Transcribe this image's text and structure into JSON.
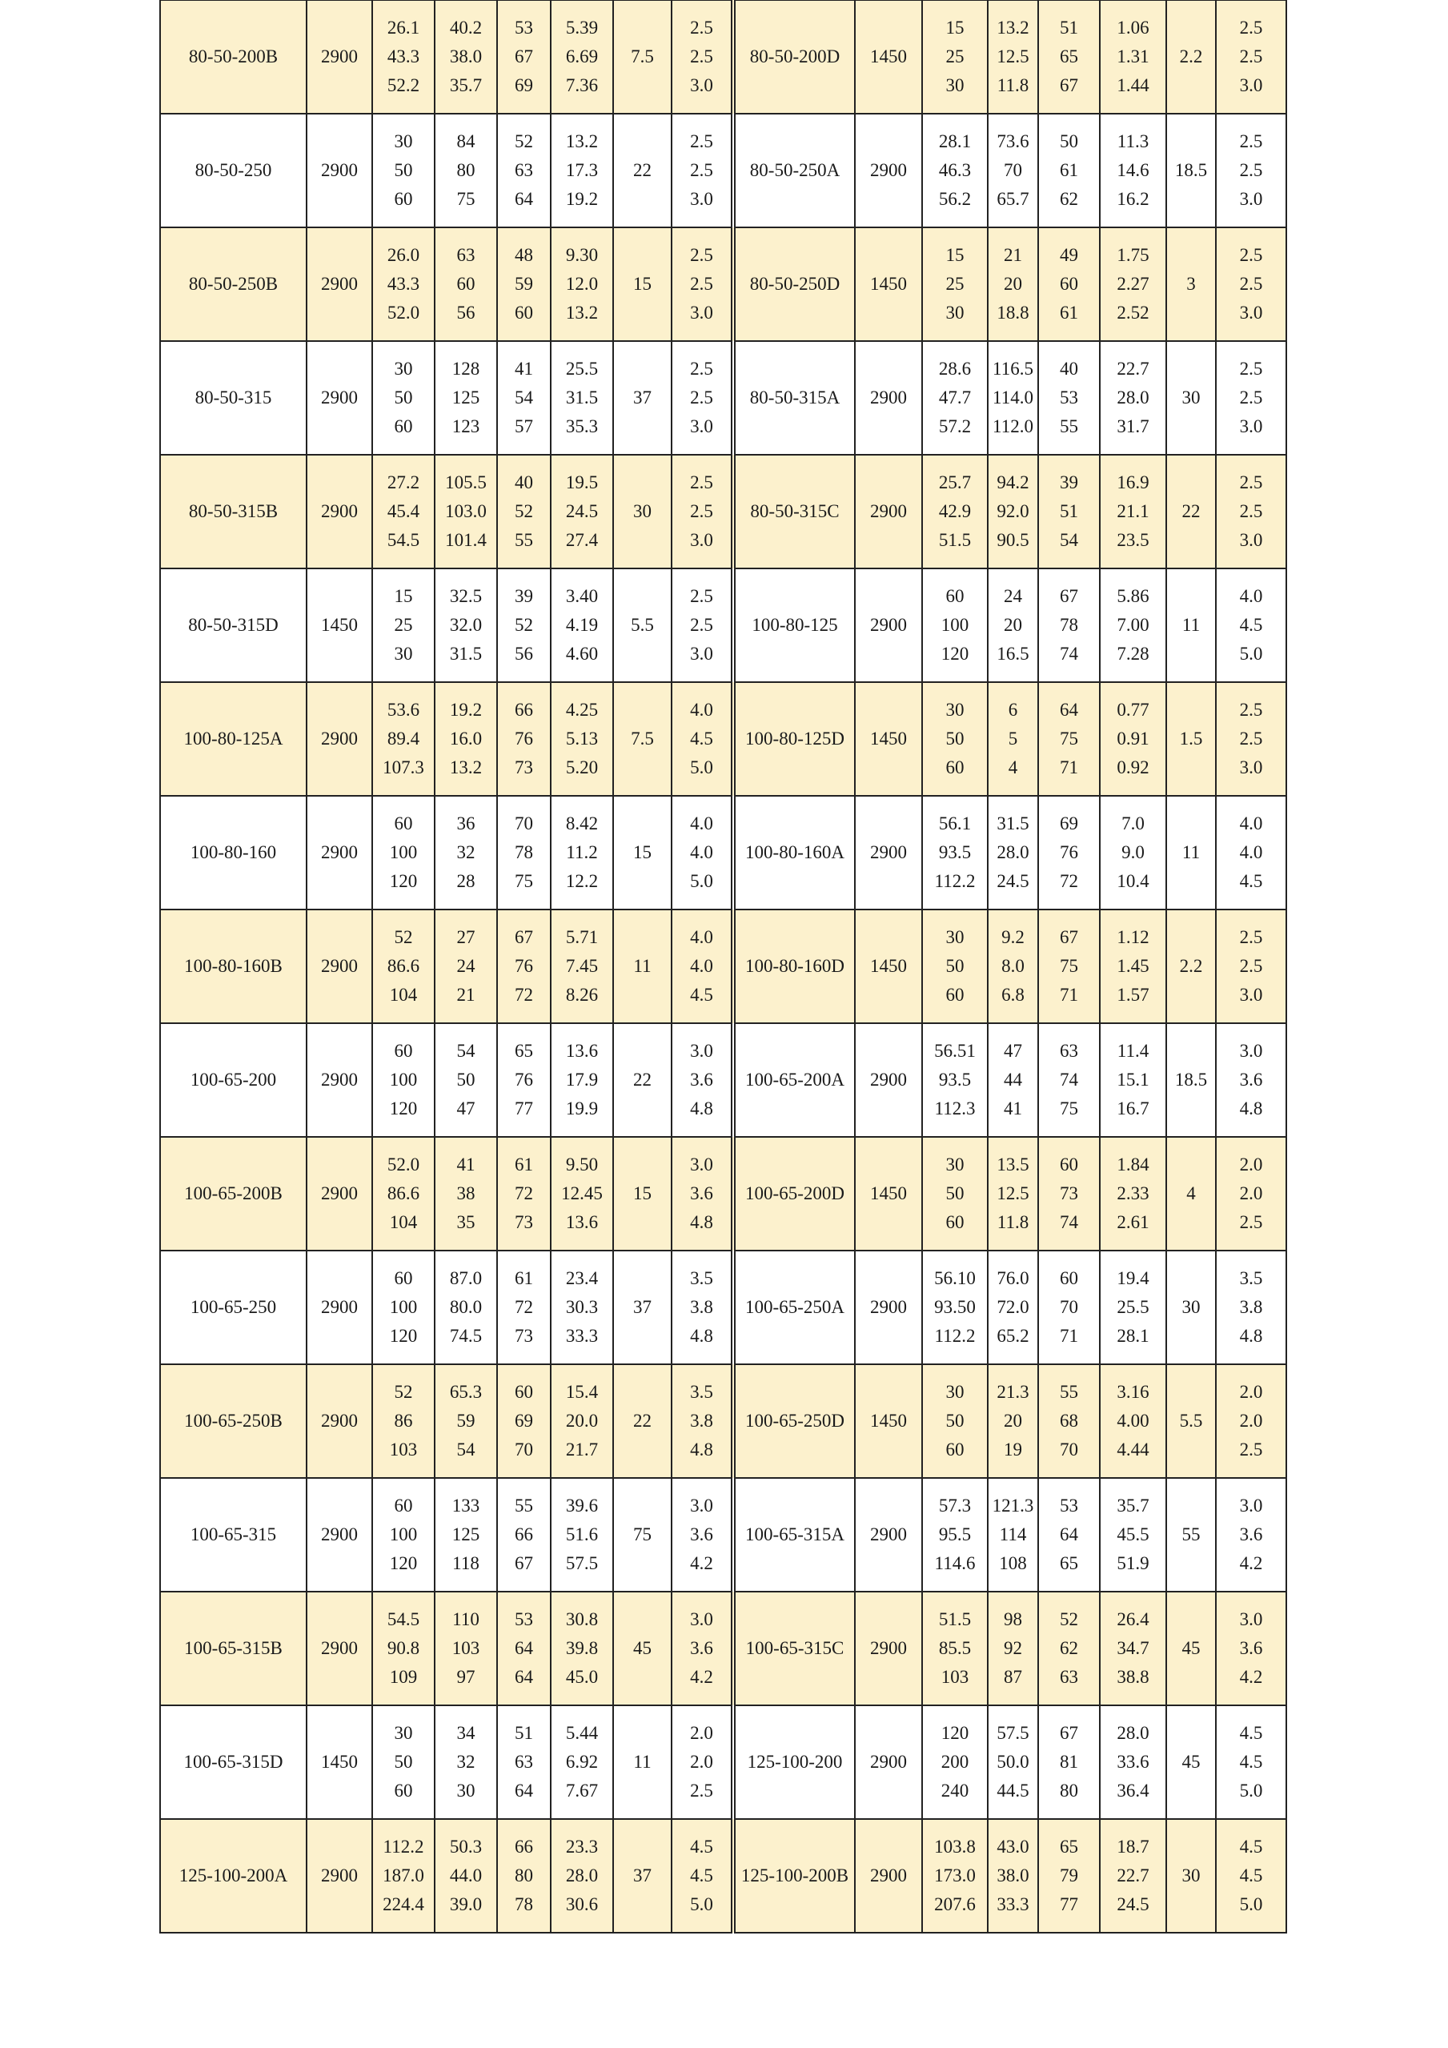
{
  "colors": {
    "highlight_row": "#fcf1cd",
    "border": "#222222"
  },
  "rows": [
    {
      "left": {
        "model": "80-50-200B",
        "speed": "2900",
        "flow": [
          "26.1",
          "43.3",
          "52.2"
        ],
        "head": [
          "40.2",
          "38.0",
          "35.7"
        ],
        "eff": [
          "53",
          "67",
          "69"
        ],
        "shaft": [
          "5.39",
          "6.69",
          "7.36"
        ],
        "motor": "7.5",
        "npsh": [
          "2.5",
          "2.5",
          "3.0"
        ]
      },
      "right": {
        "model": "80-50-200D",
        "speed": "1450",
        "flow": [
          "15",
          "25",
          "30"
        ],
        "head": [
          "13.2",
          "12.5",
          "11.8"
        ],
        "eff": [
          "51",
          "65",
          "67"
        ],
        "shaft": [
          "1.06",
          "1.31",
          "1.44"
        ],
        "motor": "2.2",
        "npsh": [
          "2.5",
          "2.5",
          "3.0"
        ]
      }
    },
    {
      "left": {
        "model": "80-50-250",
        "speed": "2900",
        "flow": [
          "30",
          "50",
          "60"
        ],
        "head": [
          "84",
          "80",
          "75"
        ],
        "eff": [
          "52",
          "63",
          "64"
        ],
        "shaft": [
          "13.2",
          "17.3",
          "19.2"
        ],
        "motor": "22",
        "npsh": [
          "2.5",
          "2.5",
          "3.0"
        ]
      },
      "right": {
        "model": "80-50-250A",
        "speed": "2900",
        "flow": [
          "28.1",
          "46.3",
          "56.2"
        ],
        "head": [
          "73.6",
          "70",
          "65.7"
        ],
        "eff": [
          "50",
          "61",
          "62"
        ],
        "shaft": [
          "11.3",
          "14.6",
          "16.2"
        ],
        "motor": "18.5",
        "npsh": [
          "2.5",
          "2.5",
          "3.0"
        ]
      }
    },
    {
      "left": {
        "model": "80-50-250B",
        "speed": "2900",
        "flow": [
          "26.0",
          "43.3",
          "52.0"
        ],
        "head": [
          "63",
          "60",
          "56"
        ],
        "eff": [
          "48",
          "59",
          "60"
        ],
        "shaft": [
          "9.30",
          "12.0",
          "13.2"
        ],
        "motor": "15",
        "npsh": [
          "2.5",
          "2.5",
          "3.0"
        ]
      },
      "right": {
        "model": "80-50-250D",
        "speed": "1450",
        "flow": [
          "15",
          "25",
          "30"
        ],
        "head": [
          "21",
          "20",
          "18.8"
        ],
        "eff": [
          "49",
          "60",
          "61"
        ],
        "shaft": [
          "1.75",
          "2.27",
          "2.52"
        ],
        "motor": "3",
        "npsh": [
          "2.5",
          "2.5",
          "3.0"
        ]
      }
    },
    {
      "left": {
        "model": "80-50-315",
        "speed": "2900",
        "flow": [
          "30",
          "50",
          "60"
        ],
        "head": [
          "128",
          "125",
          "123"
        ],
        "eff": [
          "41",
          "54",
          "57"
        ],
        "shaft": [
          "25.5",
          "31.5",
          "35.3"
        ],
        "motor": "37",
        "npsh": [
          "2.5",
          "2.5",
          "3.0"
        ]
      },
      "right": {
        "model": "80-50-315A",
        "speed": "2900",
        "flow": [
          "28.6",
          "47.7",
          "57.2"
        ],
        "head": [
          "116.5",
          "114.0",
          "112.0"
        ],
        "eff": [
          "40",
          "53",
          "55"
        ],
        "shaft": [
          "22.7",
          "28.0",
          "31.7"
        ],
        "motor": "30",
        "npsh": [
          "2.5",
          "2.5",
          "3.0"
        ]
      }
    },
    {
      "left": {
        "model": "80-50-315B",
        "speed": "2900",
        "flow": [
          "27.2",
          "45.4",
          "54.5"
        ],
        "head": [
          "105.5",
          "103.0",
          "101.4"
        ],
        "eff": [
          "40",
          "52",
          "55"
        ],
        "shaft": [
          "19.5",
          "24.5",
          "27.4"
        ],
        "motor": "30",
        "npsh": [
          "2.5",
          "2.5",
          "3.0"
        ]
      },
      "right": {
        "model": "80-50-315C",
        "speed": "2900",
        "flow": [
          "25.7",
          "42.9",
          "51.5"
        ],
        "head": [
          "94.2",
          "92.0",
          "90.5"
        ],
        "eff": [
          "39",
          "51",
          "54"
        ],
        "shaft": [
          "16.9",
          "21.1",
          "23.5"
        ],
        "motor": "22",
        "npsh": [
          "2.5",
          "2.5",
          "3.0"
        ]
      }
    },
    {
      "left": {
        "model": "80-50-315D",
        "speed": "1450",
        "flow": [
          "15",
          "25",
          "30"
        ],
        "head": [
          "32.5",
          "32.0",
          "31.5"
        ],
        "eff": [
          "39",
          "52",
          "56"
        ],
        "shaft": [
          "3.40",
          "4.19",
          "4.60"
        ],
        "motor": "5.5",
        "npsh": [
          "2.5",
          "2.5",
          "3.0"
        ]
      },
      "right": {
        "model": "100-80-125",
        "speed": "2900",
        "flow": [
          "60",
          "100",
          "120"
        ],
        "head": [
          "24",
          "20",
          "16.5"
        ],
        "eff": [
          "67",
          "78",
          "74"
        ],
        "shaft": [
          "5.86",
          "7.00",
          "7.28"
        ],
        "motor": "11",
        "npsh": [
          "4.0",
          "4.5",
          "5.0"
        ]
      }
    },
    {
      "left": {
        "model": "100-80-125A",
        "speed": "2900",
        "flow": [
          "53.6",
          "89.4",
          "107.3"
        ],
        "head": [
          "19.2",
          "16.0",
          "13.2"
        ],
        "eff": [
          "66",
          "76",
          "73"
        ],
        "shaft": [
          "4.25",
          "5.13",
          "5.20"
        ],
        "motor": "7.5",
        "npsh": [
          "4.0",
          "4.5",
          "5.0"
        ]
      },
      "right": {
        "model": "100-80-125D",
        "speed": "1450",
        "flow": [
          "30",
          "50",
          "60"
        ],
        "head": [
          "6",
          "5",
          "4"
        ],
        "eff": [
          "64",
          "75",
          "71"
        ],
        "shaft": [
          "0.77",
          "0.91",
          "0.92"
        ],
        "motor": "1.5",
        "npsh": [
          "2.5",
          "2.5",
          "3.0"
        ]
      }
    },
    {
      "left": {
        "model": "100-80-160",
        "speed": "2900",
        "flow": [
          "60",
          "100",
          "120"
        ],
        "head": [
          "36",
          "32",
          "28"
        ],
        "eff": [
          "70",
          "78",
          "75"
        ],
        "shaft": [
          "8.42",
          "11.2",
          "12.2"
        ],
        "motor": "15",
        "npsh": [
          "4.0",
          "4.0",
          "5.0"
        ]
      },
      "right": {
        "model": "100-80-160A",
        "speed": "2900",
        "flow": [
          "56.1",
          "93.5",
          "112.2"
        ],
        "head": [
          "31.5",
          "28.0",
          "24.5"
        ],
        "eff": [
          "69",
          "76",
          "72"
        ],
        "shaft": [
          "7.0",
          "9.0",
          "10.4"
        ],
        "motor": "11",
        "npsh": [
          "4.0",
          "4.0",
          "4.5"
        ]
      }
    },
    {
      "left": {
        "model": "100-80-160B",
        "speed": "2900",
        "flow": [
          "52",
          "86.6",
          "104"
        ],
        "head": [
          "27",
          "24",
          "21"
        ],
        "eff": [
          "67",
          "76",
          "72"
        ],
        "shaft": [
          "5.71",
          "7.45",
          "8.26"
        ],
        "motor": "11",
        "npsh": [
          "4.0",
          "4.0",
          "4.5"
        ]
      },
      "right": {
        "model": "100-80-160D",
        "speed": "1450",
        "flow": [
          "30",
          "50",
          "60"
        ],
        "head": [
          "9.2",
          "8.0",
          "6.8"
        ],
        "eff": [
          "67",
          "75",
          "71"
        ],
        "shaft": [
          "1.12",
          "1.45",
          "1.57"
        ],
        "motor": "2.2",
        "npsh": [
          "2.5",
          "2.5",
          "3.0"
        ]
      }
    },
    {
      "left": {
        "model": "100-65-200",
        "speed": "2900",
        "flow": [
          "60",
          "100",
          "120"
        ],
        "head": [
          "54",
          "50",
          "47"
        ],
        "eff": [
          "65",
          "76",
          "77"
        ],
        "shaft": [
          "13.6",
          "17.9",
          "19.9"
        ],
        "motor": "22",
        "npsh": [
          "3.0",
          "3.6",
          "4.8"
        ]
      },
      "right": {
        "model": "100-65-200A",
        "speed": "2900",
        "flow": [
          "56.51",
          "93.5",
          "112.3"
        ],
        "head": [
          "47",
          "44",
          "41"
        ],
        "eff": [
          "63",
          "74",
          "75"
        ],
        "shaft": [
          "11.4",
          "15.1",
          "16.7"
        ],
        "motor": "18.5",
        "npsh": [
          "3.0",
          "3.6",
          "4.8"
        ]
      }
    },
    {
      "left": {
        "model": "100-65-200B",
        "speed": "2900",
        "flow": [
          "52.0",
          "86.6",
          "104"
        ],
        "head": [
          "41",
          "38",
          "35"
        ],
        "eff": [
          "61",
          "72",
          "73"
        ],
        "shaft": [
          "9.50",
          "12.45",
          "13.6"
        ],
        "motor": "15",
        "npsh": [
          "3.0",
          "3.6",
          "4.8"
        ]
      },
      "right": {
        "model": "100-65-200D",
        "speed": "1450",
        "flow": [
          "30",
          "50",
          "60"
        ],
        "head": [
          "13.5",
          "12.5",
          "11.8"
        ],
        "eff": [
          "60",
          "73",
          "74"
        ],
        "shaft": [
          "1.84",
          "2.33",
          "2.61"
        ],
        "motor": "4",
        "npsh": [
          "2.0",
          "2.0",
          "2.5"
        ]
      }
    },
    {
      "left": {
        "model": "100-65-250",
        "speed": "2900",
        "flow": [
          "60",
          "100",
          "120"
        ],
        "head": [
          "87.0",
          "80.0",
          "74.5"
        ],
        "eff": [
          "61",
          "72",
          "73"
        ],
        "shaft": [
          "23.4",
          "30.3",
          "33.3"
        ],
        "motor": "37",
        "npsh": [
          "3.5",
          "3.8",
          "4.8"
        ]
      },
      "right": {
        "model": "100-65-250A",
        "speed": "2900",
        "flow": [
          "56.10",
          "93.50",
          "112.2"
        ],
        "head": [
          "76.0",
          "72.0",
          "65.2"
        ],
        "eff": [
          "60",
          "70",
          "71"
        ],
        "shaft": [
          "19.4",
          "25.5",
          "28.1"
        ],
        "motor": "30",
        "npsh": [
          "3.5",
          "3.8",
          "4.8"
        ]
      }
    },
    {
      "left": {
        "model": "100-65-250B",
        "speed": "2900",
        "flow": [
          "52",
          "86",
          "103"
        ],
        "head": [
          "65.3",
          "59",
          "54"
        ],
        "eff": [
          "60",
          "69",
          "70"
        ],
        "shaft": [
          "15.4",
          "20.0",
          "21.7"
        ],
        "motor": "22",
        "npsh": [
          "3.5",
          "3.8",
          "4.8"
        ]
      },
      "right": {
        "model": "100-65-250D",
        "speed": "1450",
        "flow": [
          "30",
          "50",
          "60"
        ],
        "head": [
          "21.3",
          "20",
          "19"
        ],
        "eff": [
          "55",
          "68",
          "70"
        ],
        "shaft": [
          "3.16",
          "4.00",
          "4.44"
        ],
        "motor": "5.5",
        "npsh": [
          "2.0",
          "2.0",
          "2.5"
        ]
      }
    },
    {
      "left": {
        "model": "100-65-315",
        "speed": "2900",
        "flow": [
          "60",
          "100",
          "120"
        ],
        "head": [
          "133",
          "125",
          "118"
        ],
        "eff": [
          "55",
          "66",
          "67"
        ],
        "shaft": [
          "39.6",
          "51.6",
          "57.5"
        ],
        "motor": "75",
        "npsh": [
          "3.0",
          "3.6",
          "4.2"
        ]
      },
      "right": {
        "model": "100-65-315A",
        "speed": "2900",
        "flow": [
          "57.3",
          "95.5",
          "114.6"
        ],
        "head": [
          "121.3",
          "114",
          "108"
        ],
        "eff": [
          "53",
          "64",
          "65"
        ],
        "shaft": [
          "35.7",
          "45.5",
          "51.9"
        ],
        "motor": "55",
        "npsh": [
          "3.0",
          "3.6",
          "4.2"
        ]
      }
    },
    {
      "left": {
        "model": "100-65-315B",
        "speed": "2900",
        "flow": [
          "54.5",
          "90.8",
          "109"
        ],
        "head": [
          "110",
          "103",
          "97"
        ],
        "eff": [
          "53",
          "64",
          "64"
        ],
        "shaft": [
          "30.8",
          "39.8",
          "45.0"
        ],
        "motor": "45",
        "npsh": [
          "3.0",
          "3.6",
          "4.2"
        ]
      },
      "right": {
        "model": "100-65-315C",
        "speed": "2900",
        "flow": [
          "51.5",
          "85.5",
          "103"
        ],
        "head": [
          "98",
          "92",
          "87"
        ],
        "eff": [
          "52",
          "62",
          "63"
        ],
        "shaft": [
          "26.4",
          "34.7",
          "38.8"
        ],
        "motor": "45",
        "npsh": [
          "3.0",
          "3.6",
          "4.2"
        ]
      }
    },
    {
      "left": {
        "model": "100-65-315D",
        "speed": "1450",
        "flow": [
          "30",
          "50",
          "60"
        ],
        "head": [
          "34",
          "32",
          "30"
        ],
        "eff": [
          "51",
          "63",
          "64"
        ],
        "shaft": [
          "5.44",
          "6.92",
          "7.67"
        ],
        "motor": "11",
        "npsh": [
          "2.0",
          "2.0",
          "2.5"
        ]
      },
      "right": {
        "model": "125-100-200",
        "speed": "2900",
        "flow": [
          "120",
          "200",
          "240"
        ],
        "head": [
          "57.5",
          "50.0",
          "44.5"
        ],
        "eff": [
          "67",
          "81",
          "80"
        ],
        "shaft": [
          "28.0",
          "33.6",
          "36.4"
        ],
        "motor": "45",
        "npsh": [
          "4.5",
          "4.5",
          "5.0"
        ]
      }
    },
    {
      "left": {
        "model": "125-100-200A",
        "speed": "2900",
        "flow": [
          "112.2",
          "187.0",
          "224.4"
        ],
        "head": [
          "50.3",
          "44.0",
          "39.0"
        ],
        "eff": [
          "66",
          "80",
          "78"
        ],
        "shaft": [
          "23.3",
          "28.0",
          "30.6"
        ],
        "motor": "37",
        "npsh": [
          "4.5",
          "4.5",
          "5.0"
        ]
      },
      "right": {
        "model": "125-100-200B",
        "speed": "2900",
        "flow": [
          "103.8",
          "173.0",
          "207.6"
        ],
        "head": [
          "43.0",
          "38.0",
          "33.3"
        ],
        "eff": [
          "65",
          "79",
          "77"
        ],
        "shaft": [
          "18.7",
          "22.7",
          "24.5"
        ],
        "motor": "30",
        "npsh": [
          "4.5",
          "4.5",
          "5.0"
        ]
      }
    }
  ]
}
